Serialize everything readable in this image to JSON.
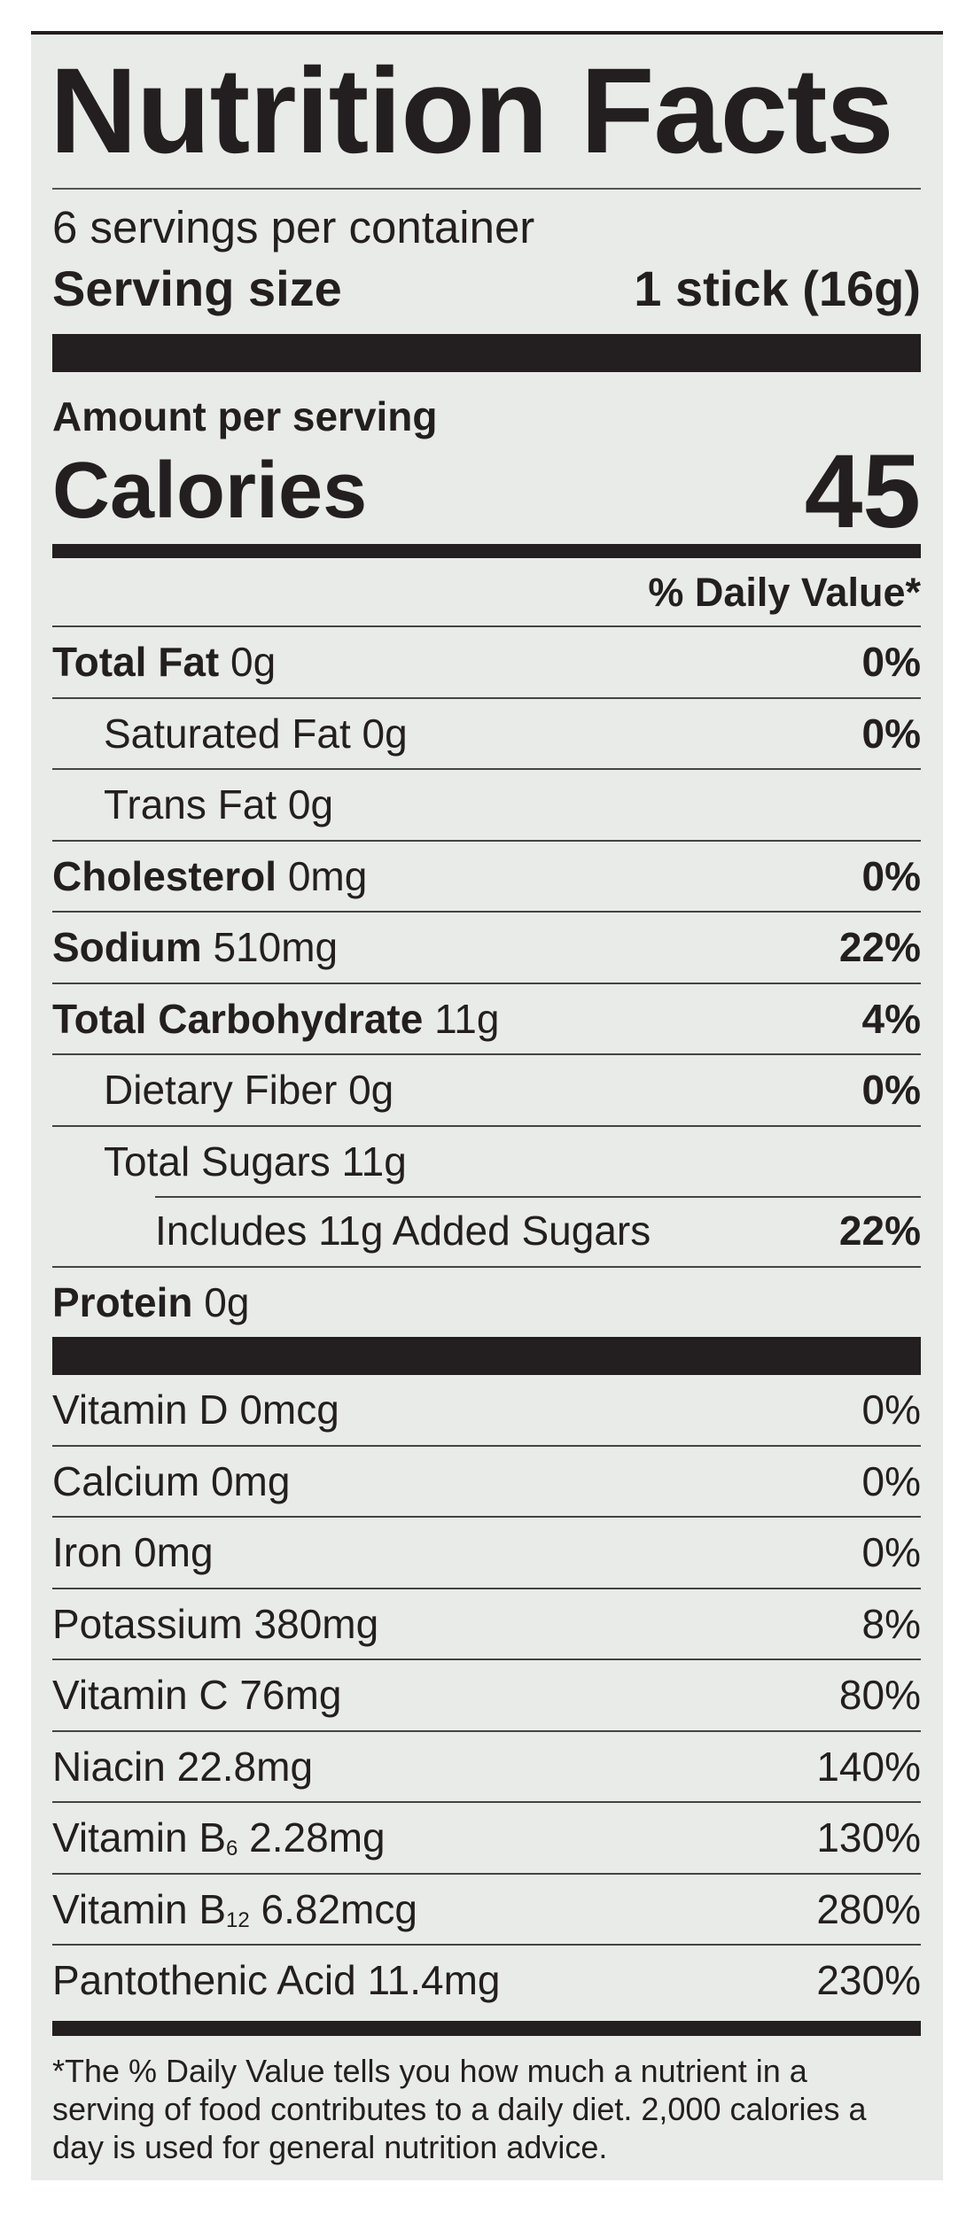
{
  "title": "Nutrition Facts",
  "servings_per_container": "6 servings per container",
  "serving_size": {
    "label": "Serving size",
    "value": "1 stick (16g)"
  },
  "amount_per_serving": "Amount per serving",
  "calories": {
    "label": "Calories",
    "value": "45"
  },
  "daily_value_header": "% Daily Value*",
  "nutrients": [
    {
      "name": "Total Fat",
      "amount": "0g",
      "dv": "0%",
      "bold": true,
      "indent": 0
    },
    {
      "name": "Saturated Fat",
      "amount": "0g",
      "dv": "0%",
      "bold": false,
      "indent": 1
    },
    {
      "name": "Trans Fat",
      "amount": "0g",
      "dv": "",
      "bold": false,
      "indent": 1
    },
    {
      "name": "Cholesterol",
      "amount": "0mg",
      "dv": "0%",
      "bold": true,
      "indent": 0
    },
    {
      "name": "Sodium",
      "amount": "510mg",
      "dv": "22%",
      "bold": true,
      "indent": 0
    },
    {
      "name": "Total Carbohydrate",
      "amount": "11g",
      "dv": "4%",
      "bold": true,
      "indent": 0
    },
    {
      "name": "Dietary Fiber",
      "amount": "0g",
      "dv": "0%",
      "bold": false,
      "indent": 1
    },
    {
      "name": "Total Sugars",
      "amount": "11g",
      "dv": "",
      "bold": false,
      "indent": 1
    },
    {
      "name": "Includes 11g Added Sugars",
      "amount": "",
      "dv": "22%",
      "bold": false,
      "indent": 2
    },
    {
      "name": "Protein",
      "amount": "0g",
      "dv": "",
      "bold": true,
      "indent": 0
    }
  ],
  "vitamins": [
    {
      "name": "Vitamin D",
      "sub": "",
      "amount": "0mcg",
      "dv": "0%"
    },
    {
      "name": "Calcium",
      "sub": "",
      "amount": "0mg",
      "dv": "0%"
    },
    {
      "name": "Iron",
      "sub": "",
      "amount": "0mg",
      "dv": "0%"
    },
    {
      "name": "Potassium",
      "sub": "",
      "amount": "380mg",
      "dv": "8%"
    },
    {
      "name": "Vitamin C",
      "sub": "",
      "amount": "76mg",
      "dv": "80%"
    },
    {
      "name": "Niacin",
      "sub": "",
      "amount": "22.8mg",
      "dv": "140%"
    },
    {
      "name": "Vitamin B",
      "sub": "6",
      "amount": "2.28mg",
      "dv": "130%"
    },
    {
      "name": "Vitamin B",
      "sub": "12",
      "amount": "6.82mcg",
      "dv": "280%"
    },
    {
      "name": "Pantothenic Acid",
      "sub": "",
      "amount": "11.4mg",
      "dv": "230%"
    }
  ],
  "footnote": "*The % Daily Value tells you how much a nutrient in a serving of food contributes to a daily diet. 2,000 calories a day is used for general nutrition advice.",
  "colors": {
    "ink": "#231f20",
    "panel": "#e9ebe8"
  }
}
